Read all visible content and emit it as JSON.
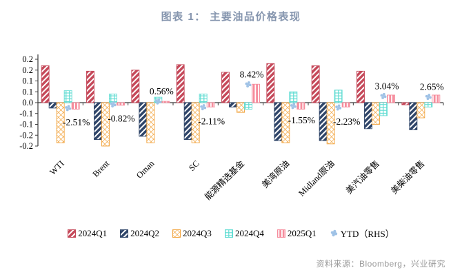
{
  "header": {
    "title": "图表 1：  主要油品价格表现"
  },
  "footer": {
    "source": "资料来源：Bloomberg，兴业研究"
  },
  "colors": {
    "title_text": "#8595ae",
    "source_text": "#9a9a9a",
    "axis": "#3a3a3a",
    "q1_red": "#c5495a",
    "q2_navy": "#2f4569",
    "q3_orange": "#f2a43e",
    "q4_cyan": "#5fdcd2",
    "q1_2025_pink": "#f68d9d",
    "ytd_marker_blue": "#9fc2e6"
  },
  "chart_data": {
    "type": "bar",
    "title": "图表 1：  主要油品价格表现",
    "categories": [
      "WTI",
      "Brent",
      "Oman",
      "SC",
      "能源精选基金",
      "美湾原油",
      "Midland原油",
      "美汽油零售",
      "美柴油零售"
    ],
    "series": [
      {
        "name": "2024Q1",
        "color": "#c5495a",
        "hatch": "diag-stripe",
        "values": [
          0.17,
          0.145,
          0.15,
          0.175,
          0.14,
          0.18,
          0.17,
          0.145,
          -0.01
        ]
      },
      {
        "name": "2024Q2",
        "color": "#2f4569",
        "hatch": "diag-stripe",
        "values": [
          -0.025,
          -0.17,
          -0.155,
          -0.17,
          -0.02,
          -0.175,
          -0.175,
          -0.12,
          -0.125
        ]
      },
      {
        "name": "2024Q3",
        "color": "#f2a43e",
        "hatch": "lattice",
        "values": [
          -0.185,
          -0.2,
          -0.185,
          -0.185,
          -0.045,
          -0.185,
          -0.19,
          -0.1,
          -0.07
        ]
      },
      {
        "name": "2024Q4",
        "color": "#5fdcd2",
        "hatch": "grid",
        "values": [
          0.055,
          0.04,
          0.025,
          0.04,
          -0.03,
          0.05,
          0.058,
          -0.06,
          -0.02
        ]
      },
      {
        "name": "2025Q1",
        "color": "#f68d9d",
        "hatch": "vert-stripe",
        "values": [
          -0.03,
          -0.012,
          0.006,
          -0.02,
          0.085,
          -0.03,
          -0.02,
          0.035,
          0.035
        ]
      }
    ],
    "marker_series": {
      "name": "YTD（RHS）",
      "color": "#9fc2e6",
      "unit": "%",
      "values": [
        -2.51,
        -0.82,
        0.56,
        -2.11,
        8.42,
        -1.55,
        -2.23,
        3.04,
        2.65
      ],
      "labels": [
        "-2.51%",
        "-0.82%",
        "0.56%",
        "-2.11%",
        "8.42%",
        "-1.55%",
        "-2.23%",
        "3.04%",
        "2.65%"
      ]
    },
    "y_tick_labels": [
      "0.2",
      "0.2",
      "0.1",
      "0.1",
      "0.0",
      "-0.1",
      "-0.1",
      "-0.2",
      "-0.2"
    ],
    "ylim": [
      -0.2,
      0.2
    ],
    "y_tick_step": 0.05,
    "rhs_axis": {
      "visible": false,
      "pct_range": [
        -20,
        20
      ]
    },
    "grid": false,
    "legend_position": "bottom"
  }
}
